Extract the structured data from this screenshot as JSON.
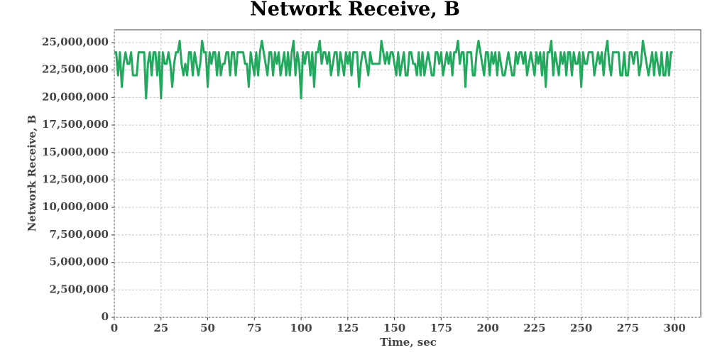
{
  "chart_data": {
    "type": "line",
    "title": "Network Receive, B",
    "x_label": "Time, sec",
    "y_label": "Network Receive, B",
    "xlim": [
      0,
      314
    ],
    "xticks": [
      0,
      25,
      50,
      75,
      100,
      125,
      150,
      175,
      200,
      225,
      250,
      275,
      300
    ],
    "ylim": [
      0,
      26160000
    ],
    "yticks": [
      0,
      {
        "value": 2500000,
        "label": "2,500,000"
      },
      {
        "value": 5000000,
        "label": "5,000,000"
      },
      {
        "value": 7500000,
        "label": "7,500,000"
      },
      {
        "value": 10000000,
        "label": "10,000,000"
      },
      {
        "value": 12500000,
        "label": "12,500,000"
      },
      {
        "value": 15000000,
        "label": "15,000,000"
      },
      {
        "value": 17500000,
        "label": "17,500,000"
      },
      {
        "value": 20000000,
        "label": "20,000,000"
      },
      {
        "value": 22500000,
        "label": "22,500,000"
      },
      {
        "value": 25000000,
        "label": "25,000,000"
      }
    ],
    "grid": true,
    "x": [
      0,
      1,
      2,
      3,
      4,
      5,
      6,
      7,
      8,
      9,
      10,
      11,
      12,
      13,
      14,
      15,
      16,
      17,
      18,
      19,
      20,
      21,
      22,
      23,
      24,
      25,
      26,
      27,
      28,
      29,
      30,
      31,
      32,
      33,
      34,
      35,
      36,
      37,
      38,
      39,
      40,
      41,
      42,
      43,
      44,
      45,
      46,
      47,
      48,
      49,
      50,
      51,
      52,
      53,
      54,
      55,
      56,
      57,
      58,
      59,
      60,
      61,
      62,
      63,
      64,
      65,
      66,
      67,
      68,
      69,
      70,
      71,
      72,
      73,
      74,
      75,
      76,
      77,
      78,
      79,
      80,
      81,
      82,
      83,
      84,
      85,
      86,
      87,
      88,
      89,
      90,
      91,
      92,
      93,
      94,
      95,
      96,
      97,
      98,
      99,
      100,
      101,
      102,
      103,
      104,
      105,
      106,
      107,
      108,
      109,
      110,
      111,
      112,
      113,
      114,
      115,
      116,
      117,
      118,
      119,
      120,
      121,
      122,
      123,
      124,
      125,
      126,
      127,
      128,
      129,
      130,
      131,
      132,
      133,
      134,
      135,
      136,
      137,
      138,
      139,
      140,
      141,
      142,
      143,
      144,
      145,
      146,
      147,
      148,
      149,
      150,
      151,
      152,
      153,
      154,
      155,
      156,
      157,
      158,
      159,
      160,
      161,
      162,
      163,
      164,
      165,
      166,
      167,
      168,
      169,
      170,
      171,
      172,
      173,
      174,
      175,
      176,
      177,
      178,
      179,
      180,
      181,
      182,
      183,
      184,
      185,
      186,
      187,
      188,
      189,
      190,
      191,
      192,
      193,
      194,
      195,
      196,
      197,
      198,
      199,
      200,
      201,
      202,
      203,
      204,
      205,
      206,
      207,
      208,
      209,
      210,
      211,
      212,
      213,
      214,
      215,
      216,
      217,
      218,
      219,
      220,
      221,
      222,
      223,
      224,
      225,
      226,
      227,
      228,
      229,
      230,
      231,
      232,
      233,
      234,
      235,
      236,
      237,
      238,
      239,
      240,
      241,
      242,
      243,
      244,
      245,
      246,
      247,
      248,
      249,
      250,
      251,
      252,
      253,
      254,
      255,
      256,
      257,
      258,
      259,
      260,
      261,
      262,
      263,
      264,
      265,
      266,
      267,
      268,
      269,
      270,
      271,
      272,
      273,
      274,
      275,
      276,
      277,
      278,
      279,
      280,
      281,
      282,
      283,
      284,
      285,
      286,
      287,
      288,
      289,
      290,
      291,
      292,
      293,
      294,
      295,
      296,
      297,
      298,
      299
    ],
    "series": [
      {
        "color": "#22a95e",
        "values": [
          24117248,
          24117248,
          22020096,
          24117248,
          20971520,
          23068672,
          24117248,
          23068672,
          23068672,
          24117248,
          22020096,
          22020096,
          22020096,
          24117248,
          24117248,
          24117248,
          24117248,
          19922944,
          23068672,
          24117248,
          22020096,
          24117248,
          24117248,
          22020096,
          24117248,
          19922944,
          24117248,
          23068672,
          23068672,
          24117248,
          23068672,
          20971520,
          23068672,
          24117248,
          24117248,
          25165824,
          23068672,
          22020096,
          23068672,
          22020096,
          24117248,
          24117248,
          22020096,
          24117248,
          23068672,
          22020096,
          23068672,
          25165824,
          24117248,
          24117248,
          20971520,
          24117248,
          23068672,
          24117248,
          24117248,
          22020096,
          24117248,
          22020096,
          23068672,
          23068672,
          24117248,
          24117248,
          22020096,
          24117248,
          24117248,
          22020096,
          24117248,
          24117248,
          24117248,
          24117248,
          23068672,
          23068672,
          20971520,
          24117248,
          23068672,
          22020096,
          24117248,
          22020096,
          24117248,
          25165824,
          24117248,
          23068672,
          22020096,
          24117248,
          24117248,
          22020096,
          24117248,
          23068672,
          24117248,
          22020096,
          23068672,
          24117248,
          22020096,
          24117248,
          22020096,
          24117248,
          25165824,
          22020096,
          24117248,
          23068672,
          19922944,
          24117248,
          23068672,
          24117248,
          24117248,
          22020096,
          24117248,
          20971520,
          24117248,
          24117248,
          25165824,
          23068672,
          24117248,
          24117248,
          23068672,
          24117248,
          22020096,
          23068672,
          24117248,
          24117248,
          22020096,
          24117248,
          23068672,
          22020096,
          24117248,
          23068672,
          24117248,
          22020096,
          24117248,
          24117248,
          24117248,
          20971520,
          23068672,
          24117248,
          24117248,
          23068672,
          22020096,
          24117248,
          23068672,
          23068672,
          23068672,
          23068672,
          23068672,
          25165824,
          24117248,
          23068672,
          24117248,
          23068672,
          24117248,
          24117248,
          23068672,
          22020096,
          24117248,
          22020096,
          23068672,
          24117248,
          22020096,
          22020096,
          24117248,
          24117248,
          23068672,
          23068672,
          22020096,
          24117248,
          22020096,
          24117248,
          22020096,
          23068672,
          24117248,
          23068672,
          22020096,
          22020096,
          24117248,
          24117248,
          23068672,
          24117248,
          22020096,
          23068672,
          24117248,
          23068672,
          24117248,
          22020096,
          24117248,
          24117248,
          25165824,
          23068672,
          24117248,
          24117248,
          20971520,
          24117248,
          24117248,
          24117248,
          22020096,
          22020096,
          24117248,
          25165824,
          24117248,
          23068672,
          22020096,
          24117248,
          24117248,
          22020096,
          24117248,
          23068672,
          24117248,
          22020096,
          24117248,
          23068672,
          22020096,
          22020096,
          23068672,
          24117248,
          23068672,
          22020096,
          22020096,
          24117248,
          23068672,
          24117248,
          24117248,
          23068672,
          24117248,
          22020096,
          23068672,
          24117248,
          23068672,
          22020096,
          24117248,
          23068672,
          24117248,
          22020096,
          24117248,
          20971520,
          24117248,
          24117248,
          25165824,
          22020096,
          24117248,
          23068672,
          22020096,
          24117248,
          23068672,
          24117248,
          22020096,
          24117248,
          24117248,
          22020096,
          24117248,
          23068672,
          23068672,
          24117248,
          20971520,
          24117248,
          23068672,
          23068672,
          24117248,
          24117248,
          24117248,
          22020096,
          23068672,
          24117248,
          23068672,
          24117248,
          22020096,
          24117248,
          25165824,
          23068672,
          22020096,
          24117248,
          24117248,
          24117248,
          24117248,
          22020096,
          22020096,
          24117248,
          22020096,
          22020096,
          24117248,
          24117248,
          23068672,
          24117248,
          24117248,
          22020096,
          23068672,
          25165824,
          24117248,
          23068672,
          22020096,
          23068672,
          24117248,
          22020096,
          24117248,
          23068672,
          22020096,
          24117248,
          22020096,
          22020096,
          24117248,
          22020096,
          24117248,
          24117248
        ]
      }
    ]
  }
}
